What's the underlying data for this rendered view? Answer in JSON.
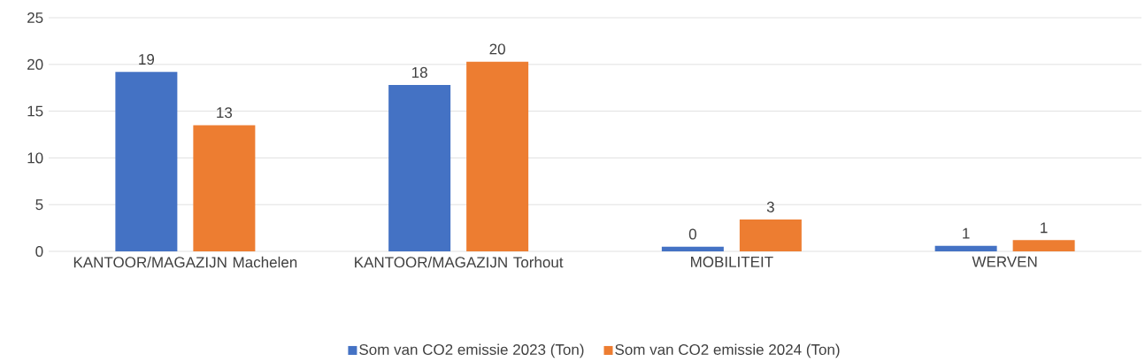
{
  "chart_data": {
    "type": "bar",
    "categories": [
      "KANTOOR/MAGAZIJN Machelen",
      "KANTOOR/MAGAZIJN Torhout",
      "MOBILITEIT",
      "WERVEN"
    ],
    "series": [
      {
        "name": "Som van CO2 emissie 2023 (Ton)",
        "color": "#4472c4",
        "values": [
          19.2,
          17.8,
          0.5,
          0.6
        ],
        "value_labels": [
          "19",
          "18",
          "0",
          "1"
        ]
      },
      {
        "name": "Som van CO2 emissie 2024 (Ton)",
        "color": "#ed7d31",
        "values": [
          13.5,
          20.3,
          3.4,
          1.2
        ],
        "value_labels": [
          "13",
          "20",
          "3",
          "1"
        ]
      }
    ],
    "ylim": [
      0,
      25
    ],
    "yticks": [
      0,
      5,
      10,
      15,
      20,
      25
    ],
    "grid": "y",
    "legend": "bottom"
  }
}
